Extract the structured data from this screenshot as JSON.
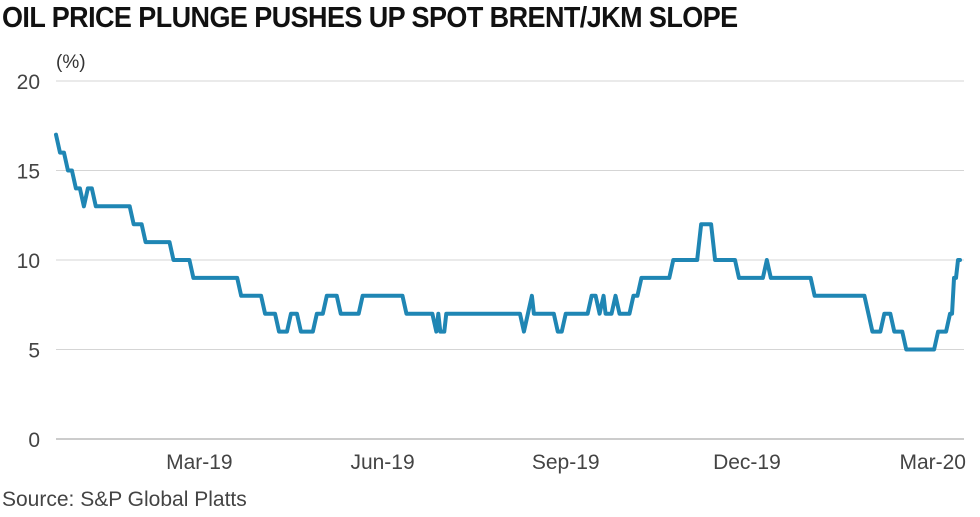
{
  "chart_data": {
    "type": "line",
    "title": "OIL PRICE PLUNGE PUSHES UP SPOT BRENT/JKM SLOPE",
    "ylabel": "(%)",
    "source": "Source: S&P Global Platts",
    "ylim": [
      0,
      20
    ],
    "yticks": [
      "0",
      "5",
      "10",
      "15",
      "20"
    ],
    "xlim": [
      "2019-01-02",
      "2020-03-31"
    ],
    "xticks": [
      {
        "label": "Mar-19",
        "date": "2019-03-15"
      },
      {
        "label": "Jun-19",
        "date": "2019-06-15"
      },
      {
        "label": "Sep-19",
        "date": "2019-09-15"
      },
      {
        "label": "Dec-19",
        "date": "2019-12-15"
      },
      {
        "label": "Mar-20",
        "date": "2020-03-15"
      }
    ],
    "grid": true,
    "colors": {
      "line": "#1f86b4",
      "grid": "#d5d5d5",
      "axis": "#999999"
    },
    "series": [
      {
        "name": "",
        "points": [
          [
            "2019-01-02",
            17
          ],
          [
            "2019-01-04",
            16
          ],
          [
            "2019-01-06",
            16
          ],
          [
            "2019-01-08",
            15
          ],
          [
            "2019-01-10",
            15
          ],
          [
            "2019-01-12",
            14
          ],
          [
            "2019-01-14",
            14
          ],
          [
            "2019-01-16",
            13
          ],
          [
            "2019-01-18",
            14
          ],
          [
            "2019-01-20",
            14
          ],
          [
            "2019-01-22",
            13
          ],
          [
            "2019-02-08",
            13
          ],
          [
            "2019-02-10",
            12
          ],
          [
            "2019-02-14",
            12
          ],
          [
            "2019-02-16",
            11
          ],
          [
            "2019-02-28",
            11
          ],
          [
            "2019-03-02",
            10
          ],
          [
            "2019-03-10",
            10
          ],
          [
            "2019-03-12",
            9
          ],
          [
            "2019-04-03",
            9
          ],
          [
            "2019-04-05",
            8
          ],
          [
            "2019-04-15",
            8
          ],
          [
            "2019-04-17",
            7
          ],
          [
            "2019-04-22",
            7
          ],
          [
            "2019-04-24",
            6
          ],
          [
            "2019-04-28",
            6
          ],
          [
            "2019-04-30",
            7
          ],
          [
            "2019-05-03",
            7
          ],
          [
            "2019-05-05",
            6
          ],
          [
            "2019-05-11",
            6
          ],
          [
            "2019-05-13",
            7
          ],
          [
            "2019-05-16",
            7
          ],
          [
            "2019-05-18",
            8
          ],
          [
            "2019-05-23",
            8
          ],
          [
            "2019-05-25",
            7
          ],
          [
            "2019-06-03",
            7
          ],
          [
            "2019-06-05",
            8
          ],
          [
            "2019-06-25",
            8
          ],
          [
            "2019-06-27",
            7
          ],
          [
            "2019-07-10",
            7
          ],
          [
            "2019-07-12",
            6
          ],
          [
            "2019-07-13",
            7
          ],
          [
            "2019-07-14",
            6
          ],
          [
            "2019-07-16",
            6
          ],
          [
            "2019-07-17",
            7
          ],
          [
            "2019-08-23",
            7
          ],
          [
            "2019-08-25",
            6
          ],
          [
            "2019-08-27",
            7
          ],
          [
            "2019-08-29",
            8
          ],
          [
            "2019-08-30",
            7
          ],
          [
            "2019-09-09",
            7
          ],
          [
            "2019-09-11",
            6
          ],
          [
            "2019-09-13",
            6
          ],
          [
            "2019-09-15",
            7
          ],
          [
            "2019-09-26",
            7
          ],
          [
            "2019-09-28",
            8
          ],
          [
            "2019-09-30",
            8
          ],
          [
            "2019-10-02",
            7
          ],
          [
            "2019-10-04",
            8
          ],
          [
            "2019-10-05",
            7
          ],
          [
            "2019-10-08",
            7
          ],
          [
            "2019-10-10",
            8
          ],
          [
            "2019-10-12",
            7
          ],
          [
            "2019-10-17",
            7
          ],
          [
            "2019-10-19",
            8
          ],
          [
            "2019-10-21",
            8
          ],
          [
            "2019-10-23",
            9
          ],
          [
            "2019-11-06",
            9
          ],
          [
            "2019-11-08",
            10
          ],
          [
            "2019-11-20",
            10
          ],
          [
            "2019-11-22",
            12
          ],
          [
            "2019-11-27",
            12
          ],
          [
            "2019-11-29",
            10
          ],
          [
            "2019-12-09",
            10
          ],
          [
            "2019-12-11",
            9
          ],
          [
            "2019-12-23",
            9
          ],
          [
            "2019-12-25",
            10
          ],
          [
            "2019-12-27",
            9
          ],
          [
            "2020-01-16",
            9
          ],
          [
            "2020-01-18",
            8
          ],
          [
            "2020-02-12",
            8
          ],
          [
            "2020-02-14",
            7
          ],
          [
            "2020-02-16",
            6
          ],
          [
            "2020-02-20",
            6
          ],
          [
            "2020-02-22",
            7
          ],
          [
            "2020-02-25",
            7
          ],
          [
            "2020-02-27",
            6
          ],
          [
            "2020-03-02",
            6
          ],
          [
            "2020-03-04",
            5
          ],
          [
            "2020-03-18",
            5
          ],
          [
            "2020-03-20",
            6
          ],
          [
            "2020-03-24",
            6
          ],
          [
            "2020-03-26",
            7
          ],
          [
            "2020-03-27",
            7
          ],
          [
            "2020-03-28",
            9
          ],
          [
            "2020-03-29",
            9
          ],
          [
            "2020-03-30",
            10
          ],
          [
            "2020-03-31",
            10
          ]
        ]
      }
    ]
  }
}
